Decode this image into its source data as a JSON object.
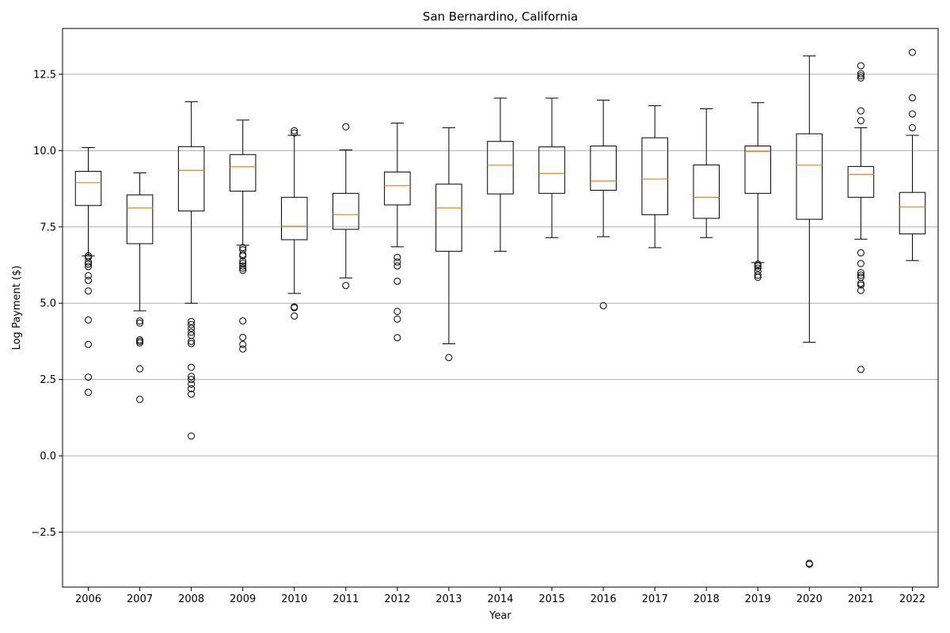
{
  "chart_data": {
    "type": "box",
    "title": "San Bernardino, California",
    "xlabel": "Year",
    "ylabel": "Log Payment ($)",
    "ylim": [
      -4.3,
      14.0
    ],
    "yticks": [
      -2.5,
      0.0,
      2.5,
      5.0,
      7.5,
      10.0,
      12.5
    ],
    "ytick_labels": [
      "−2.5",
      "0.0",
      "2.5",
      "5.0",
      "7.5",
      "10.0",
      "12.5"
    ],
    "grid": "y",
    "colors": {
      "box": "#000000",
      "median": "#ff7f0e",
      "grid": "#b0b0b0"
    },
    "categories": [
      "2006",
      "2007",
      "2008",
      "2009",
      "2010",
      "2011",
      "2012",
      "2013",
      "2014",
      "2015",
      "2016",
      "2017",
      "2018",
      "2019",
      "2020",
      "2021",
      "2022"
    ],
    "boxes": [
      {
        "year": "2006",
        "whislo": 6.55,
        "q1": 8.2,
        "median": 8.95,
        "q3": 9.32,
        "whishi": 10.1,
        "fliers": [
          6.55,
          6.5,
          6.35,
          6.28,
          6.2,
          5.9,
          5.75,
          5.4,
          4.45,
          3.65,
          2.58,
          2.08
        ]
      },
      {
        "year": "2007",
        "whislo": 4.75,
        "q1": 6.95,
        "median": 8.12,
        "q3": 8.55,
        "whishi": 9.27,
        "fliers": [
          4.42,
          4.35,
          3.8,
          3.75,
          3.7,
          2.85,
          1.85
        ]
      },
      {
        "year": "2008",
        "whislo": 5.0,
        "q1": 8.02,
        "median": 9.35,
        "q3": 10.13,
        "whishi": 11.6,
        "fliers": [
          4.4,
          4.3,
          4.18,
          4.05,
          3.95,
          3.75,
          3.68,
          2.9,
          2.6,
          2.5,
          2.35,
          2.2,
          2.02,
          0.65
        ]
      },
      {
        "year": "2009",
        "whislo": 6.9,
        "q1": 8.67,
        "median": 9.47,
        "q3": 9.87,
        "whishi": 11.0,
        "fliers": [
          6.82,
          6.75,
          6.6,
          6.55,
          6.38,
          6.3,
          6.22,
          6.15,
          6.08,
          4.42,
          3.88,
          3.65,
          3.5
        ]
      },
      {
        "year": "2010",
        "whislo": 5.32,
        "q1": 7.08,
        "median": 7.52,
        "q3": 8.47,
        "whishi": 10.5,
        "fliers": [
          10.65,
          10.58,
          4.88,
          4.85,
          4.58
        ]
      },
      {
        "year": "2011",
        "whislo": 5.83,
        "q1": 7.42,
        "median": 7.9,
        "q3": 8.6,
        "whishi": 10.02,
        "fliers": [
          10.78,
          5.58
        ]
      },
      {
        "year": "2012",
        "whislo": 6.85,
        "q1": 8.22,
        "median": 8.85,
        "q3": 9.3,
        "whishi": 10.9,
        "fliers": [
          6.5,
          6.35,
          6.22,
          5.72,
          4.73,
          4.48,
          3.87
        ]
      },
      {
        "year": "2013",
        "whislo": 3.67,
        "q1": 6.7,
        "median": 8.12,
        "q3": 8.9,
        "whishi": 10.75,
        "fliers": [
          3.22
        ]
      },
      {
        "year": "2014",
        "whislo": 6.7,
        "q1": 8.58,
        "median": 9.52,
        "q3": 10.3,
        "whishi": 11.72,
        "fliers": []
      },
      {
        "year": "2015",
        "whislo": 7.15,
        "q1": 8.6,
        "median": 9.25,
        "q3": 10.12,
        "whishi": 11.72,
        "fliers": []
      },
      {
        "year": "2016",
        "whislo": 7.18,
        "q1": 8.7,
        "median": 9.0,
        "q3": 10.15,
        "whishi": 11.65,
        "fliers": [
          4.92
        ]
      },
      {
        "year": "2017",
        "whislo": 6.82,
        "q1": 7.9,
        "median": 9.07,
        "q3": 10.42,
        "whishi": 11.47,
        "fliers": []
      },
      {
        "year": "2018",
        "whislo": 7.15,
        "q1": 7.78,
        "median": 8.47,
        "q3": 9.53,
        "whishi": 11.37,
        "fliers": []
      },
      {
        "year": "2019",
        "whislo": 6.33,
        "q1": 8.6,
        "median": 9.97,
        "q3": 10.15,
        "whishi": 11.57,
        "fliers": [
          6.28,
          6.22,
          6.15,
          6.05,
          5.92,
          5.85
        ]
      },
      {
        "year": "2020",
        "whislo": 3.72,
        "q1": 7.75,
        "median": 9.52,
        "q3": 10.55,
        "whishi": 13.1,
        "fliers": [
          -3.52,
          -3.55
        ]
      },
      {
        "year": "2021",
        "whislo": 7.1,
        "q1": 8.47,
        "median": 9.22,
        "q3": 9.48,
        "whishi": 10.75,
        "fliers": [
          12.78,
          12.52,
          12.45,
          12.38,
          11.3,
          10.98,
          6.65,
          6.3,
          6.0,
          5.92,
          5.85,
          5.65,
          5.6,
          5.42,
          2.83
        ]
      },
      {
        "year": "2022",
        "whislo": 6.4,
        "q1": 7.27,
        "median": 8.15,
        "q3": 8.63,
        "whishi": 10.5,
        "fliers": [
          13.22,
          11.73,
          11.2,
          10.75
        ]
      }
    ]
  }
}
